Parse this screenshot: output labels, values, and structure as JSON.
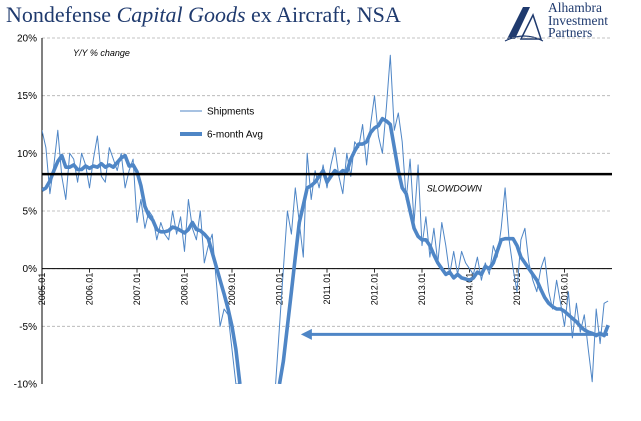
{
  "title_parts": {
    "plain1": "Nondefense ",
    "italic": "Capital Goods",
    "plain2": " ex Aircraft, NSA"
  },
  "logo": {
    "line1": "Alhambra",
    "line2": "Investment",
    "line3": "Partners",
    "icon": "stylized-A-logo-icon"
  },
  "colors": {
    "series": "#4f86c6",
    "title": "#1f3a6e",
    "threshold": "#000000",
    "grid": "#b0b0b0"
  },
  "chart_data": {
    "type": "line",
    "title": "Nondefense Capital Goods ex Aircraft, NSA",
    "ylabel": "Y/Y % change",
    "ylim": [
      -10,
      20
    ],
    "yticks": [
      20,
      15,
      10,
      5,
      0,
      -5,
      -10
    ],
    "ytick_labels": [
      "20%",
      "15%",
      "10%",
      "5%",
      "0%",
      "-5%",
      "-10%"
    ],
    "xlim": [
      2005.0,
      2017.0
    ],
    "xticks": [
      2005,
      2006,
      2007,
      2008,
      2009,
      2010,
      2011,
      2012,
      2013,
      2014,
      2015,
      2016
    ],
    "xtick_labels": [
      "2005.01",
      "2006.01",
      "2007.01",
      "2008.01",
      "2009.01",
      "2010.01",
      "2011.01",
      "2012.01",
      "2013.01",
      "2014.01",
      "2015.01",
      "2016.01"
    ],
    "grid": "horizontal",
    "legend_position": "upper-left",
    "series": [
      {
        "name": "Shipments",
        "style": "thin",
        "x": [
          2005.0,
          2005.083,
          2005.167,
          2005.25,
          2005.333,
          2005.417,
          2005.5,
          2005.583,
          2005.667,
          2005.75,
          2005.833,
          2005.917,
          2006.0,
          2006.083,
          2006.167,
          2006.25,
          2006.333,
          2006.417,
          2006.5,
          2006.583,
          2006.667,
          2006.75,
          2006.833,
          2006.917,
          2007.0,
          2007.083,
          2007.167,
          2007.25,
          2007.333,
          2007.417,
          2007.5,
          2007.583,
          2007.667,
          2007.75,
          2007.833,
          2007.917,
          2008.0,
          2008.083,
          2008.167,
          2008.25,
          2008.333,
          2008.417,
          2008.5,
          2008.583,
          2008.667,
          2008.75,
          2008.833,
          2008.917,
          2009.0,
          2009.083,
          2009.167,
          2009.917,
          2010.0,
          2010.083,
          2010.167,
          2010.25,
          2010.333,
          2010.417,
          2010.5,
          2010.583,
          2010.667,
          2010.75,
          2010.833,
          2010.917,
          2011.0,
          2011.083,
          2011.167,
          2011.25,
          2011.333,
          2011.417,
          2011.5,
          2011.583,
          2011.667,
          2011.75,
          2011.833,
          2011.917,
          2012.0,
          2012.083,
          2012.167,
          2012.25,
          2012.333,
          2012.417,
          2012.5,
          2012.583,
          2012.667,
          2012.75,
          2012.833,
          2012.917,
          2013.0,
          2013.083,
          2013.167,
          2013.25,
          2013.333,
          2013.417,
          2013.5,
          2013.583,
          2013.667,
          2013.75,
          2013.833,
          2013.917,
          2014.0,
          2014.083,
          2014.167,
          2014.25,
          2014.333,
          2014.417,
          2014.5,
          2014.583,
          2014.667,
          2014.75,
          2014.833,
          2014.917,
          2015.0,
          2015.083,
          2015.167,
          2015.25,
          2015.333,
          2015.417,
          2015.5,
          2015.583,
          2015.667,
          2015.75,
          2015.833,
          2015.917,
          2016.0,
          2016.083,
          2016.167,
          2016.25,
          2016.333,
          2016.417,
          2016.5,
          2016.583,
          2016.667,
          2016.75,
          2016.833,
          2016.917
        ],
        "y": [
          12.0,
          10.5,
          6.5,
          9.0,
          12.0,
          8.0,
          6.0,
          10.0,
          9.5,
          7.5,
          10.0,
          9.0,
          7.0,
          9.5,
          11.5,
          8.0,
          7.5,
          10.5,
          9.5,
          8.5,
          10.0,
          7.0,
          8.5,
          9.5,
          4.0,
          6.0,
          3.5,
          5.0,
          4.5,
          2.5,
          4.0,
          3.0,
          2.5,
          5.0,
          3.0,
          4.5,
          1.5,
          6.0,
          3.5,
          2.5,
          5.0,
          0.5,
          2.0,
          3.0,
          -1.0,
          -5.0,
          -3.5,
          -4.0,
          -7.0,
          -10.0,
          -10.0,
          -10.0,
          -5.0,
          0.0,
          5.0,
          3.0,
          7.0,
          4.0,
          1.0,
          10.0,
          6.0,
          8.5,
          7.0,
          9.0,
          7.0,
          9.0,
          10.5,
          8.0,
          6.5,
          10.0,
          8.0,
          11.0,
          10.5,
          12.5,
          9.0,
          12.5,
          15.0,
          11.5,
          10.0,
          14.0,
          18.5,
          12.0,
          13.5,
          11.0,
          6.0,
          9.5,
          4.0,
          9.0,
          2.0,
          4.5,
          1.0,
          3.5,
          0.5,
          4.0,
          2.0,
          -0.5,
          1.5,
          -0.5,
          1.5,
          0.5,
          0.0,
          -0.5,
          1.0,
          -1.0,
          0.5,
          -0.5,
          2.0,
          1.0,
          3.5,
          7.0,
          2.5,
          0.0,
          -2.0,
          2.5,
          3.5,
          0.5,
          -1.0,
          -2.0,
          0.0,
          1.0,
          -2.0,
          -3.5,
          -1.0,
          -3.0,
          -5.0,
          -2.0,
          -6.0,
          -3.0,
          -5.5,
          -4.0,
          -7.0,
          -9.8,
          -3.5,
          -6.5,
          -3.0,
          -2.8
        ]
      },
      {
        "name": "6-month Avg",
        "style": "thick",
        "x": [
          2005.0,
          2005.083,
          2005.167,
          2005.25,
          2005.333,
          2005.417,
          2005.5,
          2005.583,
          2005.667,
          2005.75,
          2005.833,
          2005.917,
          2006.0,
          2006.083,
          2006.167,
          2006.25,
          2006.333,
          2006.417,
          2006.5,
          2006.583,
          2006.667,
          2006.75,
          2006.833,
          2006.917,
          2007.0,
          2007.083,
          2007.167,
          2007.25,
          2007.333,
          2007.417,
          2007.5,
          2007.583,
          2007.667,
          2007.75,
          2007.833,
          2007.917,
          2008.0,
          2008.083,
          2008.167,
          2008.25,
          2008.333,
          2008.417,
          2008.5,
          2008.583,
          2008.667,
          2008.75,
          2008.833,
          2008.917,
          2009.0,
          2009.083,
          2009.167,
          2010.0,
          2010.083,
          2010.167,
          2010.25,
          2010.333,
          2010.417,
          2010.5,
          2010.583,
          2010.667,
          2010.75,
          2010.833,
          2010.917,
          2011.0,
          2011.083,
          2011.167,
          2011.25,
          2011.333,
          2011.417,
          2011.5,
          2011.583,
          2011.667,
          2011.75,
          2011.833,
          2011.917,
          2012.0,
          2012.083,
          2012.167,
          2012.25,
          2012.333,
          2012.417,
          2012.5,
          2012.583,
          2012.667,
          2012.75,
          2012.833,
          2012.917,
          2013.0,
          2013.083,
          2013.167,
          2013.25,
          2013.333,
          2013.417,
          2013.5,
          2013.583,
          2013.667,
          2013.75,
          2013.833,
          2013.917,
          2014.0,
          2014.083,
          2014.167,
          2014.25,
          2014.333,
          2014.417,
          2014.5,
          2014.583,
          2014.667,
          2014.75,
          2014.833,
          2014.917,
          2015.0,
          2015.083,
          2015.167,
          2015.25,
          2015.333,
          2015.417,
          2015.5,
          2015.583,
          2015.667,
          2015.75,
          2015.833,
          2015.917,
          2016.0,
          2016.083,
          2016.167,
          2016.25,
          2016.333,
          2016.417,
          2016.5,
          2016.583,
          2016.667,
          2016.75,
          2016.833,
          2016.917
        ],
        "y": [
          6.8,
          7.0,
          7.6,
          8.5,
          9.3,
          9.8,
          8.8,
          8.8,
          9.0,
          8.6,
          8.6,
          8.9,
          8.7,
          8.9,
          8.8,
          9.1,
          8.8,
          9.0,
          8.8,
          9.2,
          9.6,
          9.8,
          8.9,
          9.0,
          8.4,
          7.2,
          5.4,
          4.6,
          4.2,
          3.4,
          3.2,
          3.2,
          3.3,
          3.6,
          3.5,
          3.3,
          3.1,
          3.4,
          4.0,
          3.4,
          3.3,
          3.0,
          2.6,
          1.4,
          0.2,
          -1.0,
          -2.2,
          -3.5,
          -5.0,
          -7.0,
          -10.0,
          -10.0,
          -8.0,
          -5.0,
          -2.0,
          1.0,
          4.0,
          5.5,
          7.0,
          7.2,
          7.5,
          8.0,
          8.5,
          7.5,
          8.0,
          8.5,
          8.2,
          8.5,
          8.4,
          9.5,
          10.2,
          10.8,
          10.8,
          11.0,
          11.8,
          12.2,
          12.4,
          13.0,
          12.8,
          12.5,
          10.5,
          8.5,
          7.0,
          6.5,
          5.0,
          3.5,
          2.8,
          2.5,
          2.5,
          2.0,
          1.2,
          0.5,
          0.0,
          -0.5,
          -0.3,
          -0.8,
          -0.5,
          -0.8,
          -0.9,
          -1.0,
          -0.8,
          -0.3,
          -0.5,
          0.2,
          0.0,
          0.5,
          1.5,
          2.5,
          2.6,
          2.6,
          2.6,
          2.0,
          1.0,
          0.5,
          0.0,
          -0.5,
          -1.0,
          -1.8,
          -2.5,
          -3.0,
          -3.3,
          -3.5,
          -3.5,
          -3.7,
          -4.0,
          -4.3,
          -4.6,
          -5.0,
          -5.3,
          -5.5,
          -5.6,
          -5.8,
          -5.6,
          -5.8,
          -4.9
        ]
      }
    ],
    "annotations": [
      {
        "type": "hline",
        "y": 8.2,
        "color": "#000000"
      },
      {
        "type": "text",
        "text": "SLOWDOWN",
        "x": 2013.1,
        "y": 6.7
      },
      {
        "type": "arrow",
        "x_start": 2016.917,
        "x_end": 2010.45,
        "y": -5.7
      }
    ]
  }
}
